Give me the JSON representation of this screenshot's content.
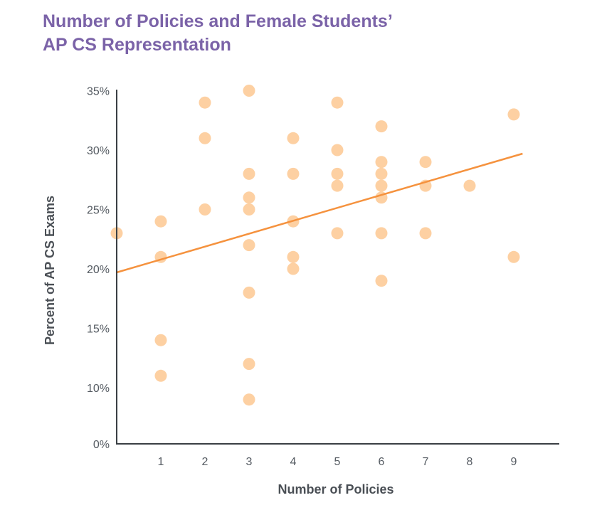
{
  "chart_data": {
    "type": "scatter",
    "title": [
      "Number of Policies and Female Students’",
      "AP CS Representation"
    ],
    "xlabel": "Number of Policies",
    "ylabel": "Percent of AP CS Exams",
    "x_ticks": [
      "1",
      "2",
      "3",
      "4",
      "5",
      "6",
      "7",
      "8",
      "9"
    ],
    "y_ticks": [
      "0%",
      "10%",
      "15%",
      "20%",
      "25%",
      "30%",
      "35%"
    ],
    "xlim": [
      0,
      10
    ],
    "ylim": [
      0,
      35
    ],
    "grid": false,
    "legend": "none",
    "colors": {
      "points": "#fdd0a2",
      "trend": "#f5923e",
      "axis": "#3a3f44",
      "title": "#7b63a8"
    },
    "points": [
      {
        "x": 0,
        "y": 23
      },
      {
        "x": 1,
        "y": 24
      },
      {
        "x": 1,
        "y": 21
      },
      {
        "x": 1,
        "y": 14
      },
      {
        "x": 1,
        "y": 11
      },
      {
        "x": 2,
        "y": 34
      },
      {
        "x": 2,
        "y": 31
      },
      {
        "x": 2,
        "y": 25
      },
      {
        "x": 3,
        "y": 35
      },
      {
        "x": 3,
        "y": 28
      },
      {
        "x": 3,
        "y": 26
      },
      {
        "x": 3,
        "y": 25
      },
      {
        "x": 3,
        "y": 22
      },
      {
        "x": 3,
        "y": 18
      },
      {
        "x": 3,
        "y": 12
      },
      {
        "x": 3,
        "y": 9
      },
      {
        "x": 4,
        "y": 31
      },
      {
        "x": 4,
        "y": 28
      },
      {
        "x": 4,
        "y": 24
      },
      {
        "x": 4,
        "y": 21
      },
      {
        "x": 4,
        "y": 20
      },
      {
        "x": 5,
        "y": 34
      },
      {
        "x": 5,
        "y": 30
      },
      {
        "x": 5,
        "y": 28
      },
      {
        "x": 5,
        "y": 27
      },
      {
        "x": 5,
        "y": 23
      },
      {
        "x": 6,
        "y": 32
      },
      {
        "x": 6,
        "y": 29
      },
      {
        "x": 6,
        "y": 28
      },
      {
        "x": 6,
        "y": 27
      },
      {
        "x": 6,
        "y": 26
      },
      {
        "x": 6,
        "y": 23
      },
      {
        "x": 6,
        "y": 19
      },
      {
        "x": 7,
        "y": 29
      },
      {
        "x": 7,
        "y": 27
      },
      {
        "x": 7,
        "y": 23
      },
      {
        "x": 8,
        "y": 27
      },
      {
        "x": 9,
        "y": 33
      },
      {
        "x": 9,
        "y": 21
      }
    ],
    "trend_line": {
      "x0": 0,
      "y0": 19.7,
      "x1": 9.2,
      "y1": 29.7
    }
  }
}
